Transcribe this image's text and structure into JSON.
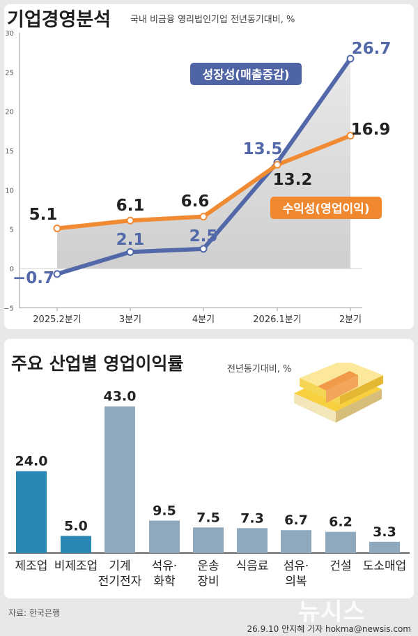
{
  "chart1": {
    "title": "기업경영분석",
    "subtitle": "국내 비금융 영리법인기업 전년동기대비, %",
    "y_ticks": [
      "30",
      "25",
      "20",
      "15",
      "10",
      "5",
      "0",
      "−5"
    ],
    "chart_data": {
      "type": "line",
      "categories": [
        "2025.2분기",
        "3분기",
        "4분기",
        "2026.1분기",
        "2분기"
      ],
      "series": [
        {
          "name": "성장성(매출증감)",
          "values": [
            -0.7,
            2.1,
            2.5,
            13.5,
            26.7
          ],
          "labels": [
            "−0.7",
            "2.1",
            "2.5",
            "13.5",
            "26.7"
          ],
          "color": "#5268a8"
        },
        {
          "name": "수익성(영업이익)",
          "values": [
            5.1,
            6.1,
            6.6,
            13.2,
            16.9
          ],
          "labels": [
            "5.1",
            "6.1",
            "6.6",
            "13.2",
            "16.9"
          ],
          "color": "#f08a33"
        }
      ],
      "ylim": [
        -5,
        30
      ],
      "grid": false
    }
  },
  "chart2": {
    "title": "주요 산업별 영업이익률",
    "subtitle": "전년동기대비, %",
    "chart_data": {
      "type": "bar",
      "categories": [
        "제조업",
        "비제조업",
        "기계\n전기전자",
        "석유·\n화학",
        "운송\n장비",
        "식음료",
        "섬유·\n의복",
        "건설",
        "도소매업"
      ],
      "values": [
        24.0,
        5.0,
        43.0,
        9.5,
        7.5,
        7.3,
        6.7,
        6.2,
        3.3
      ],
      "value_labels": [
        "24.0",
        "5.0",
        "43.0",
        "9.5",
        "7.5",
        "7.3",
        "6.7",
        "6.2",
        "3.3"
      ],
      "colors": [
        "#2a87b6",
        "#2a87b6",
        "#8ea9be",
        "#8ea9be",
        "#8ea9be",
        "#8ea9be",
        "#8ea9be",
        "#8ea9be",
        "#8ea9be"
      ],
      "ylim": [
        0,
        45
      ]
    }
  },
  "source": "자료: 한국은행",
  "credit": "26.9.10 안지혜 기자 hokma@newsis.com",
  "watermark": "뉴시스"
}
